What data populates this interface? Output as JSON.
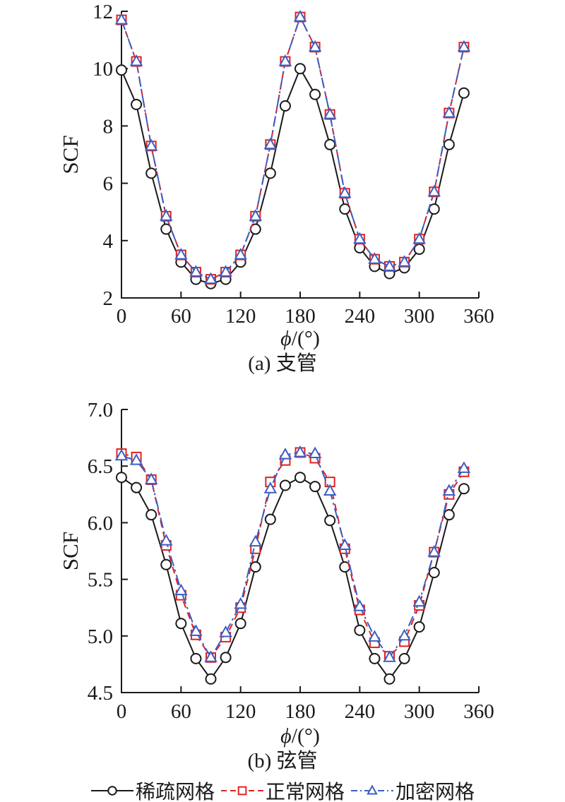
{
  "legend": {
    "items": [
      {
        "label": "稀疏网格",
        "color": "#1a1a1a",
        "marker": "circle",
        "line": "solid"
      },
      {
        "label": "正常网格",
        "color": "#e02222",
        "marker": "square",
        "line": "dashed"
      },
      {
        "label": "加密网格",
        "color": "#3b5ec4",
        "marker": "triangle",
        "line": "dashdot"
      }
    ]
  },
  "chart_data": [
    {
      "type": "line",
      "caption": "(a) 支管",
      "ylabel": "SCF",
      "xlabel": "ϕ/(°)",
      "xlabel_italic": "ϕ",
      "xlabel_rest": "/(°)",
      "grid": false,
      "legend_position": "below-figure-b",
      "xlim": [
        0,
        360
      ],
      "ylim": [
        2,
        12
      ],
      "xticks": {
        "values": [
          0,
          60,
          120,
          180,
          240,
          300,
          360
        ],
        "labels": [
          "0",
          "60",
          "120",
          "180",
          "240",
          "300",
          "360"
        ]
      },
      "yticks": {
        "values": [
          2,
          4,
          6,
          8,
          10,
          12
        ],
        "labels": [
          "2",
          "4",
          "6",
          "8",
          "10",
          "12"
        ]
      },
      "x": [
        0,
        15,
        30,
        45,
        60,
        75,
        90,
        105,
        120,
        135,
        150,
        165,
        180,
        195,
        210,
        225,
        240,
        255,
        270,
        285,
        300,
        315,
        330,
        345
      ],
      "series": [
        {
          "name": "稀疏网格",
          "color": "#1a1a1a",
          "marker": "circle",
          "line": "solid",
          "values": [
            9.95,
            8.75,
            6.35,
            4.4,
            3.25,
            2.65,
            2.5,
            2.65,
            3.25,
            4.4,
            6.35,
            8.7,
            10.0,
            9.1,
            7.35,
            5.1,
            3.75,
            3.1,
            2.85,
            3.05,
            3.7,
            5.1,
            7.35,
            9.15
          ]
        },
        {
          "name": "正常网格",
          "color": "#e02222",
          "marker": "square",
          "line": "dashed",
          "values": [
            11.7,
            10.25,
            7.3,
            4.85,
            3.5,
            2.9,
            2.65,
            2.9,
            3.5,
            4.85,
            7.35,
            10.25,
            11.8,
            10.75,
            8.4,
            5.65,
            4.05,
            3.35,
            3.1,
            3.25,
            4.05,
            5.7,
            8.45,
            10.75
          ]
        },
        {
          "name": "加密网格",
          "color": "#3b5ec4",
          "marker": "triangle",
          "line": "dashdot",
          "values": [
            11.7,
            10.25,
            7.3,
            4.85,
            3.5,
            2.9,
            2.65,
            2.9,
            3.5,
            4.85,
            7.35,
            10.25,
            11.8,
            10.75,
            8.4,
            5.65,
            4.05,
            3.35,
            3.1,
            3.25,
            4.05,
            5.7,
            8.45,
            10.75
          ]
        }
      ]
    },
    {
      "type": "line",
      "caption": "(b) 弦管",
      "ylabel": "SCF",
      "xlabel": "ϕ/(°)",
      "xlabel_italic": "ϕ",
      "xlabel_rest": "/(°)",
      "grid": false,
      "legend_position": "below-figure-b",
      "xlim": [
        0,
        360
      ],
      "ylim": [
        4.5,
        7.0
      ],
      "xticks": {
        "values": [
          0,
          60,
          120,
          180,
          240,
          300,
          360
        ],
        "labels": [
          "0",
          "60",
          "120",
          "180",
          "240",
          "300",
          "360"
        ]
      },
      "yticks": {
        "values": [
          4.5,
          5.0,
          5.5,
          6.0,
          6.5,
          7.0
        ],
        "labels": [
          "4.5",
          "5.0",
          "5.5",
          "6.0",
          "6.5",
          "7.0"
        ]
      },
      "x": [
        0,
        15,
        30,
        45,
        60,
        75,
        90,
        105,
        120,
        135,
        150,
        165,
        180,
        195,
        210,
        225,
        240,
        255,
        270,
        285,
        300,
        315,
        330,
        345
      ],
      "series": [
        {
          "name": "稀疏网格",
          "color": "#1a1a1a",
          "marker": "circle",
          "line": "solid",
          "values": [
            6.4,
            6.31,
            6.07,
            5.63,
            5.11,
            4.8,
            4.62,
            4.81,
            5.11,
            5.61,
            6.03,
            6.33,
            6.4,
            6.32,
            6.02,
            5.61,
            5.05,
            4.8,
            4.62,
            4.8,
            5.08,
            5.56,
            6.07,
            6.3
          ]
        },
        {
          "name": "正常网格",
          "color": "#e02222",
          "marker": "square",
          "line": "dashed",
          "values": [
            6.61,
            6.58,
            6.38,
            5.8,
            5.36,
            5.01,
            4.81,
            4.99,
            5.25,
            5.77,
            6.36,
            6.55,
            6.62,
            6.57,
            6.36,
            5.77,
            5.23,
            4.94,
            4.82,
            4.95,
            5.27,
            5.74,
            6.25,
            6.45
          ]
        },
        {
          "name": "加密网格",
          "color": "#3b5ec4",
          "marker": "triangle",
          "line": "dashdot",
          "values": [
            6.59,
            6.55,
            6.38,
            5.84,
            5.4,
            5.04,
            4.81,
            5.03,
            5.28,
            5.83,
            6.3,
            6.6,
            6.62,
            6.61,
            6.28,
            5.8,
            5.26,
            4.99,
            4.81,
            5.0,
            5.3,
            5.74,
            6.28,
            6.48
          ]
        }
      ]
    }
  ]
}
